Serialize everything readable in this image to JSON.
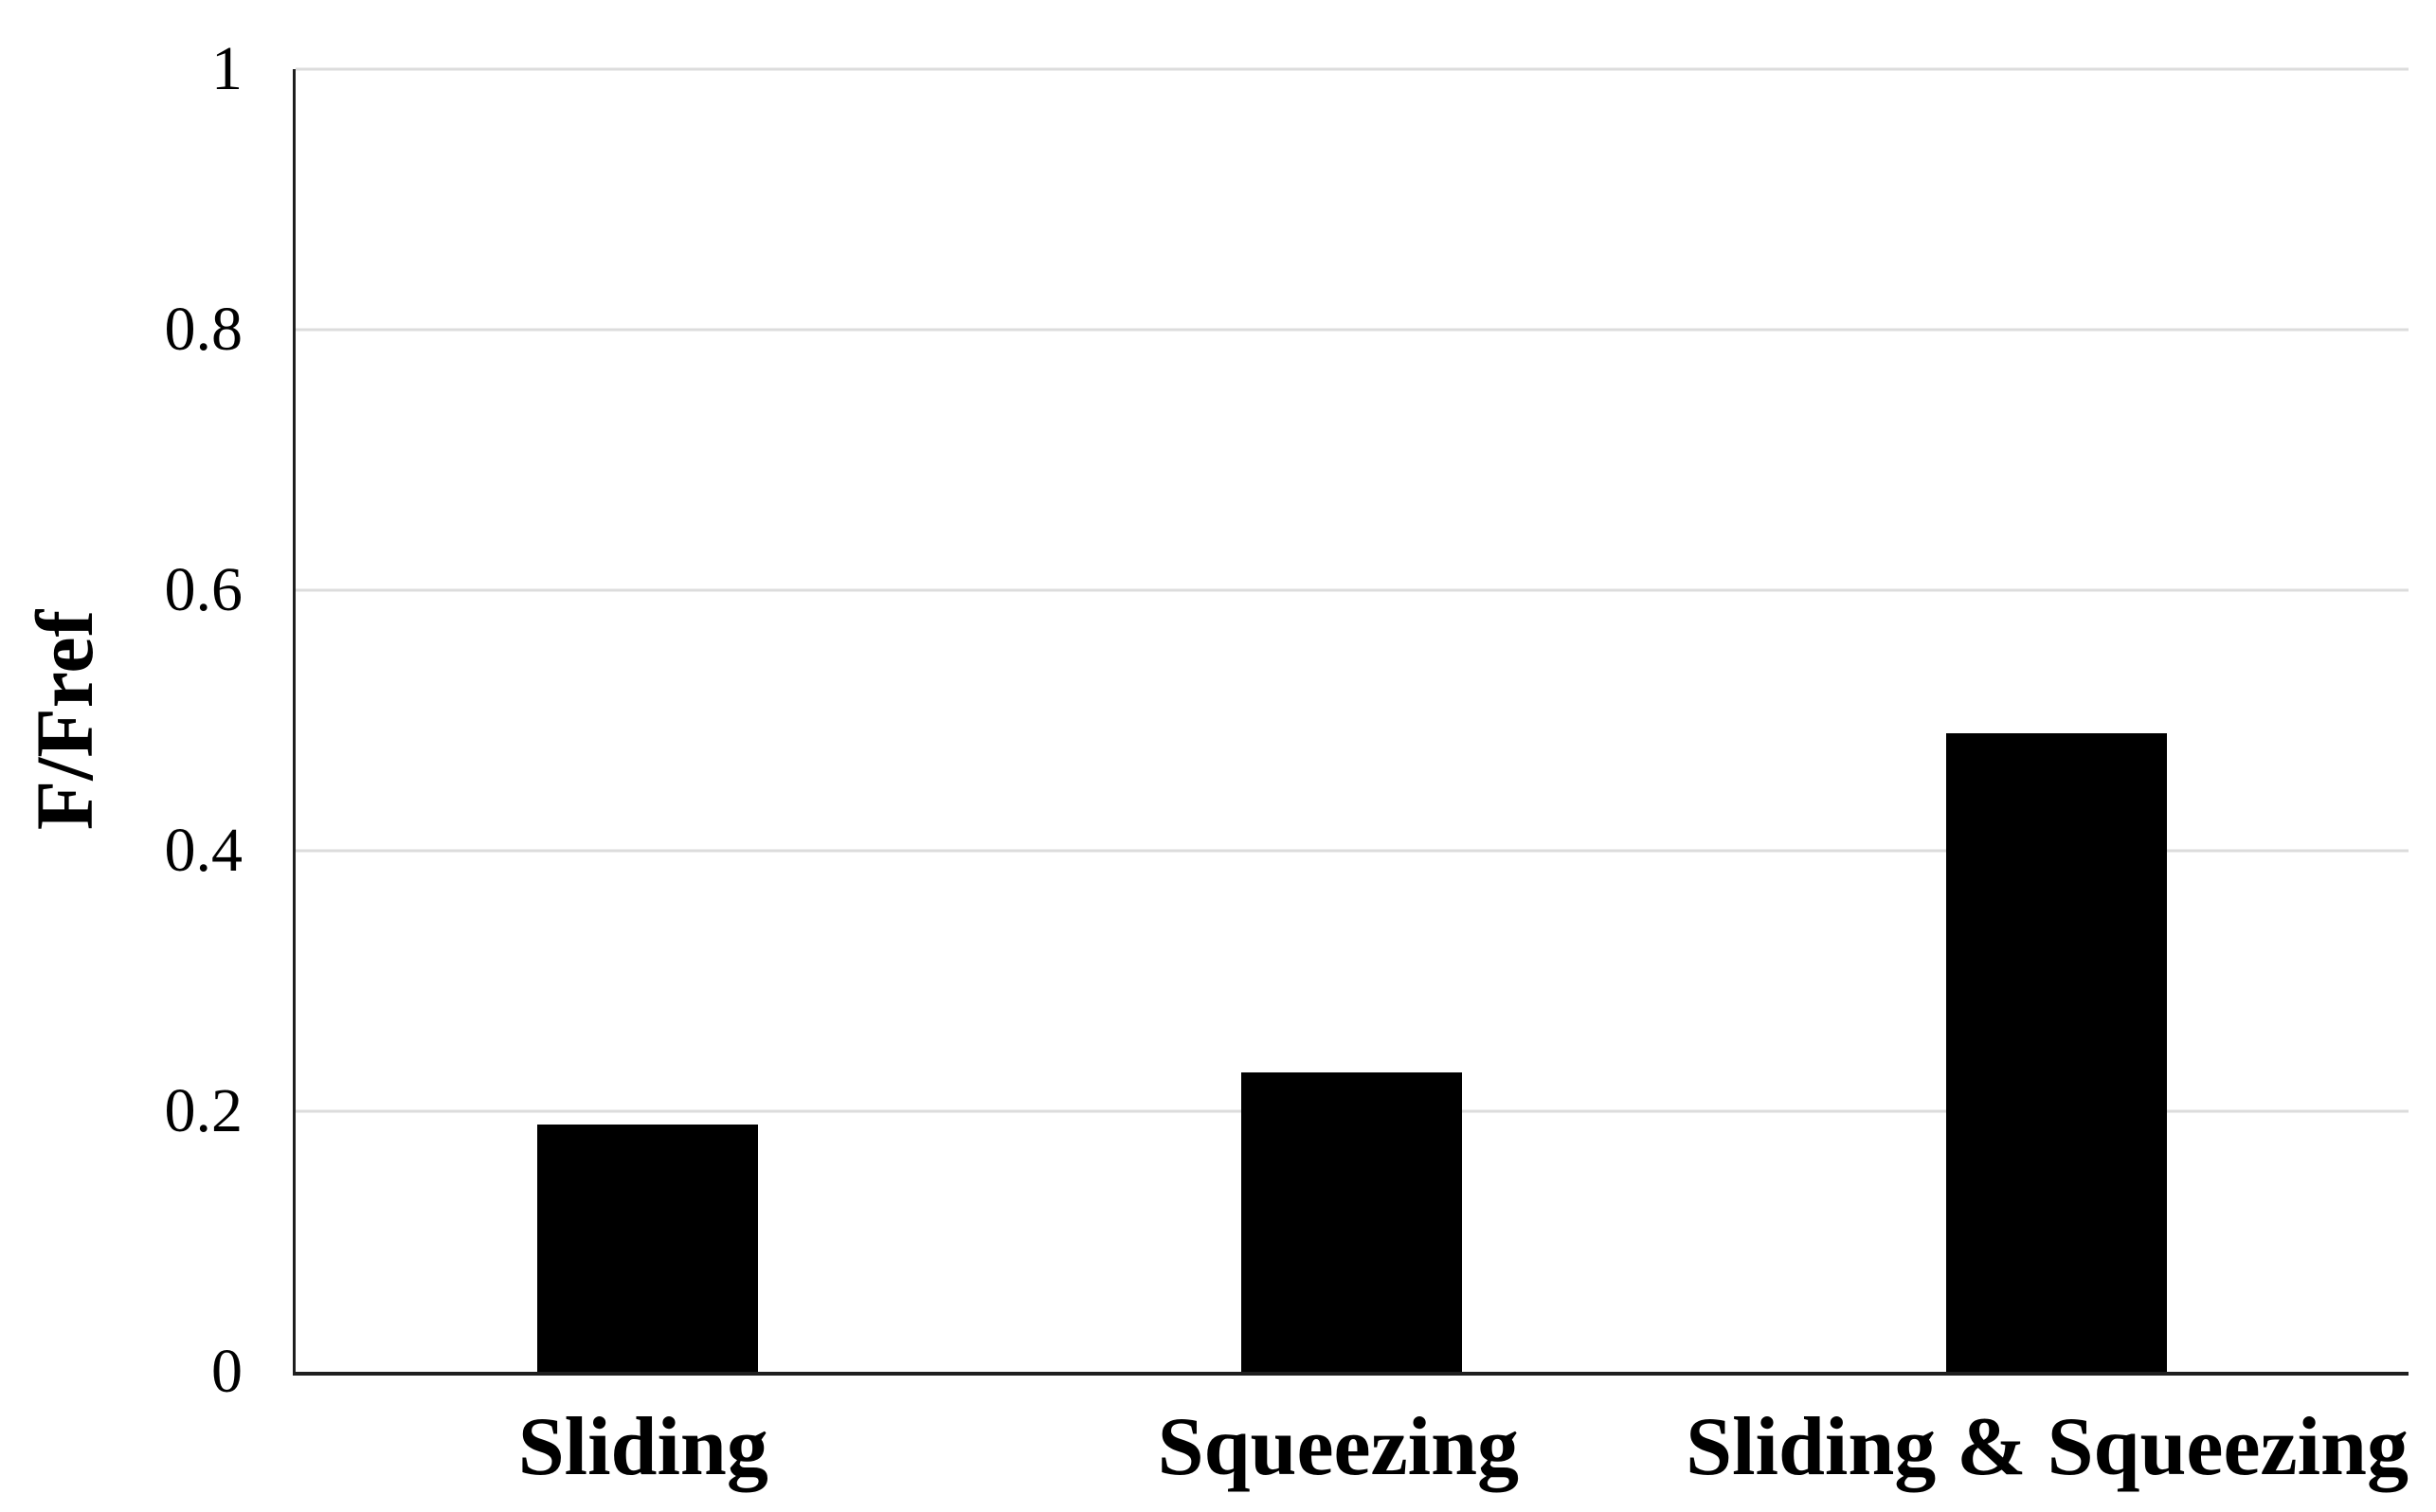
{
  "chart_data": {
    "type": "bar",
    "categories": [
      "Sliding",
      "Squeezing",
      "Sliding & Squeezing"
    ],
    "values": [
      0.19,
      0.23,
      0.49
    ],
    "title": "",
    "xlabel": "",
    "ylabel": "F/Fref",
    "ylim": [
      0,
      1
    ],
    "yticks": [
      0,
      0.2,
      0.4,
      0.6,
      0.8,
      1
    ],
    "ytick_labels": [
      "0",
      "0.2",
      "0.4",
      "0.6",
      "0.8",
      "1"
    ],
    "grid": "horizontal gridlines at each y tick, none vertical",
    "legend": "none",
    "bar_color": "#000000",
    "gridline_color": "#dcdcdc",
    "axis_color": "#1f1f1f",
    "text_color": "#000000",
    "background_color": "#ffffff"
  }
}
